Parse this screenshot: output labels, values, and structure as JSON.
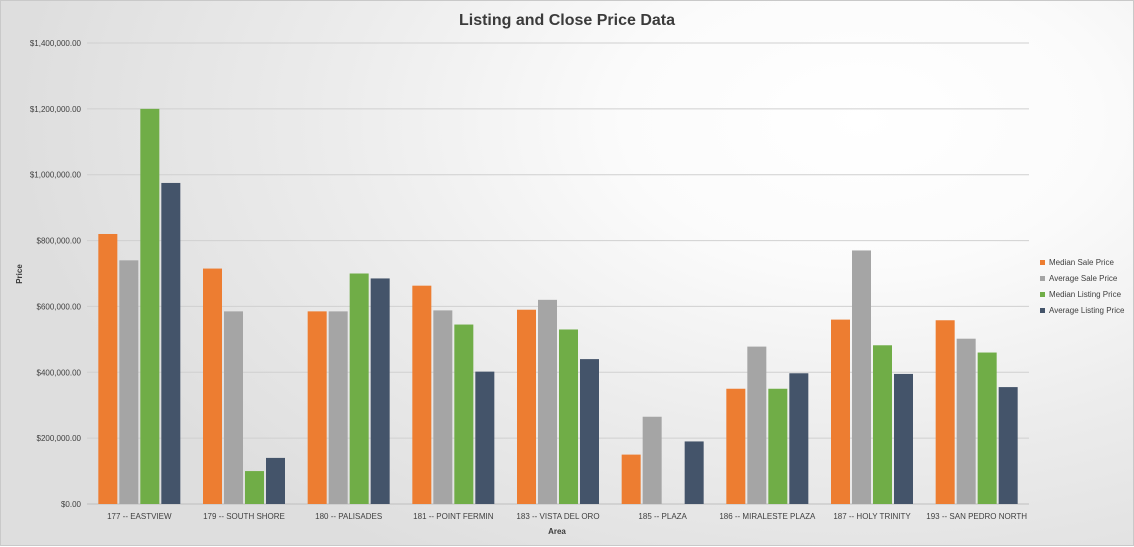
{
  "chart_data": {
    "type": "bar",
    "title": "Listing and Close Price Data",
    "xlabel": "Area",
    "ylabel": "Price",
    "ylim": [
      0,
      1400000
    ],
    "y_ticks": [
      0,
      200000,
      400000,
      600000,
      800000,
      1000000,
      1200000,
      1400000
    ],
    "y_tick_labels": [
      "$0.00",
      "$200,000.00",
      "$400,000.00",
      "$600,000.00",
      "$800,000.00",
      "$1,000,000.00",
      "$1,200,000.00",
      "$1,400,000.00"
    ],
    "grid": true,
    "legend_position": "right",
    "categories": [
      "177 -- EASTVIEW",
      "179 -- SOUTH SHORE",
      "180 -- PALISADES",
      "181 -- POINT FERMIN",
      "183 -- VISTA DEL ORO",
      "185 -- PLAZA",
      "186 -- MIRALESTE PLAZA",
      "187 -- HOLY TRINITY",
      "193 -- SAN PEDRO NORTH"
    ],
    "series": [
      {
        "name": "Median Sale Price",
        "color": "#ED7D31",
        "values": [
          820000,
          715000,
          585000,
          663000,
          590000,
          150000,
          350000,
          560000,
          558000
        ]
      },
      {
        "name": "Average Sale Price",
        "color": "#A5A5A5",
        "values": [
          740000,
          585000,
          585000,
          588000,
          620000,
          265000,
          478000,
          770000,
          502000
        ]
      },
      {
        "name": "Median Listing Price",
        "color": "#70AD47",
        "values": [
          1200000,
          100000,
          700000,
          545000,
          530000,
          0,
          350000,
          482000,
          460000
        ]
      },
      {
        "name": "Average Listing Price",
        "color": "#44546A",
        "values": [
          975000,
          140000,
          685000,
          402000,
          440000,
          190000,
          397000,
          395000,
          355000
        ]
      }
    ]
  }
}
